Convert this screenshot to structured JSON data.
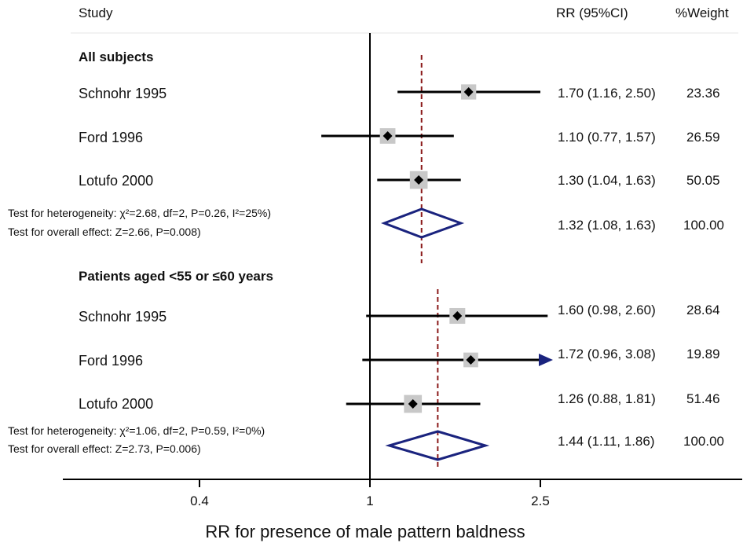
{
  "header": {
    "study": "Study",
    "rr": "RR (95%CI)",
    "weight": "%Weight"
  },
  "chart_data": {
    "type": "forest",
    "xlabel": "RR for presence of male pattern baldness",
    "xscale": "log",
    "ticks": [
      0.4,
      1,
      2.5
    ],
    "tick_labels": [
      "0.4",
      "1",
      "2.5"
    ],
    "groups": [
      {
        "title": "All subjects",
        "studies": [
          {
            "name": "Schnohr 1995",
            "rr": 1.7,
            "lo": 1.16,
            "hi": 2.5,
            "ci_text": "1.70 (1.16, 2.50)",
            "weight": "23.36"
          },
          {
            "name": "Ford 1996",
            "rr": 1.1,
            "lo": 0.77,
            "hi": 1.57,
            "ci_text": "1.10 (0.77, 1.57)",
            "weight": "26.59"
          },
          {
            "name": "Lotufo 2000",
            "rr": 1.3,
            "lo": 1.04,
            "hi": 1.63,
            "ci_text": "1.30 (1.04, 1.63)",
            "weight": "50.05"
          }
        ],
        "heterogeneity": "Test for heterogeneity: χ²=2.68, df=2, P=0.26, I²=25%)",
        "overall_effect": "Test for overall effect: Z=2.66, P=0.008)",
        "pooled": {
          "rr": 1.32,
          "lo": 1.08,
          "hi": 1.63,
          "ci_text": "1.32 (1.08, 1.63)",
          "weight": "100.00"
        }
      },
      {
        "title": "Patients aged <55 or ≤60 years",
        "studies": [
          {
            "name": "Schnohr 1995",
            "rr": 1.6,
            "lo": 0.98,
            "hi": 2.6,
            "ci_text": "1.60 (0.98, 2.60)",
            "weight": "28.64"
          },
          {
            "name": "Ford 1996",
            "rr": 1.72,
            "lo": 0.96,
            "hi": 3.08,
            "ci_text": "1.72 (0.96, 3.08)",
            "weight": "19.89",
            "arrow": true
          },
          {
            "name": "Lotufo 2000",
            "rr": 1.26,
            "lo": 0.88,
            "hi": 1.81,
            "ci_text": "1.26 (0.88, 1.81)",
            "weight": "51.46"
          }
        ],
        "heterogeneity": "Test for heterogeneity: χ²=1.06, df=2, P=0.59, I²=0%)",
        "overall_effect": "Test for overall effect: Z=2.73, P=0.006)",
        "pooled": {
          "rr": 1.44,
          "lo": 1.11,
          "hi": 1.86,
          "ci_text": "1.44 (1.11, 1.86)",
          "weight": "100.00"
        }
      }
    ],
    "colors": {
      "marker": "#000000",
      "box": "#c8c8c8",
      "diamond": "#1a237e",
      "pooled_line": "#8b1a1a",
      "arrow": "#1a237e"
    }
  }
}
